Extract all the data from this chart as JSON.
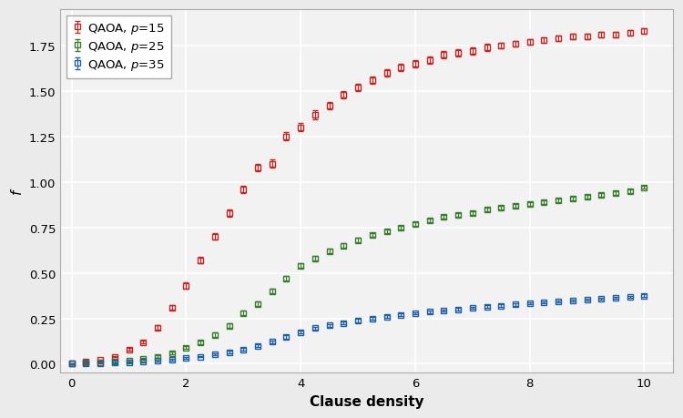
{
  "title": "",
  "xlabel": "Clause density",
  "ylabel": "f",
  "xlim": [
    -0.2,
    10.5
  ],
  "ylim": [
    -0.05,
    1.95
  ],
  "yticks": [
    0.0,
    0.25,
    0.5,
    0.75,
    1.0,
    1.25,
    1.5,
    1.75
  ],
  "xticks": [
    0,
    2,
    4,
    6,
    8,
    10
  ],
  "fig_bg": "#ebebeb",
  "ax_bg": "#f2f2f2",
  "grid_color": "#ffffff",
  "series": [
    {
      "label": "QAOA, $p$=15",
      "color": "#cc2222",
      "x": [
        0.0,
        0.25,
        0.5,
        0.75,
        1.0,
        1.25,
        1.5,
        1.75,
        2.0,
        2.25,
        2.5,
        2.75,
        3.0,
        3.25,
        3.5,
        3.75,
        4.0,
        4.25,
        4.5,
        4.75,
        5.0,
        5.25,
        5.5,
        5.75,
        6.0,
        6.25,
        6.5,
        6.75,
        7.0,
        7.25,
        7.5,
        7.75,
        8.0,
        8.25,
        8.5,
        8.75,
        9.0,
        9.25,
        9.5,
        9.75,
        10.0
      ],
      "y": [
        0.0,
        0.01,
        0.02,
        0.04,
        0.08,
        0.12,
        0.2,
        0.31,
        0.43,
        0.57,
        0.7,
        0.83,
        0.96,
        1.08,
        1.1,
        1.25,
        1.3,
        1.37,
        1.42,
        1.48,
        1.52,
        1.56,
        1.6,
        1.63,
        1.65,
        1.67,
        1.7,
        1.71,
        1.72,
        1.74,
        1.75,
        1.76,
        1.77,
        1.78,
        1.79,
        1.8,
        1.8,
        1.81,
        1.81,
        1.82,
        1.83
      ],
      "yerr": [
        0.001,
        0.002,
        0.003,
        0.005,
        0.007,
        0.009,
        0.012,
        0.014,
        0.016,
        0.017,
        0.018,
        0.019,
        0.02,
        0.021,
        0.022,
        0.023,
        0.023,
        0.023,
        0.022,
        0.022,
        0.022,
        0.021,
        0.021,
        0.02,
        0.02,
        0.019,
        0.019,
        0.018,
        0.018,
        0.018,
        0.017,
        0.017,
        0.016,
        0.016,
        0.016,
        0.015,
        0.015,
        0.015,
        0.015,
        0.015,
        0.014
      ]
    },
    {
      "label": "QAOA, $p$=25",
      "color": "#3a7d2c",
      "x": [
        0.0,
        0.25,
        0.5,
        0.75,
        1.0,
        1.25,
        1.5,
        1.75,
        2.0,
        2.25,
        2.5,
        2.75,
        3.0,
        3.25,
        3.5,
        3.75,
        4.0,
        4.25,
        4.5,
        4.75,
        5.0,
        5.25,
        5.5,
        5.75,
        6.0,
        6.25,
        6.5,
        6.75,
        7.0,
        7.25,
        7.5,
        7.75,
        8.0,
        8.25,
        8.5,
        8.75,
        9.0,
        9.25,
        9.5,
        9.75,
        10.0
      ],
      "y": [
        0.0,
        0.005,
        0.008,
        0.012,
        0.018,
        0.025,
        0.04,
        0.06,
        0.09,
        0.12,
        0.16,
        0.21,
        0.28,
        0.33,
        0.4,
        0.47,
        0.54,
        0.58,
        0.62,
        0.65,
        0.68,
        0.71,
        0.73,
        0.75,
        0.77,
        0.79,
        0.81,
        0.82,
        0.83,
        0.85,
        0.86,
        0.87,
        0.88,
        0.89,
        0.9,
        0.91,
        0.92,
        0.93,
        0.94,
        0.95,
        0.97
      ],
      "yerr": [
        0.001,
        0.002,
        0.002,
        0.003,
        0.004,
        0.005,
        0.006,
        0.008,
        0.009,
        0.01,
        0.011,
        0.012,
        0.013,
        0.013,
        0.013,
        0.013,
        0.013,
        0.013,
        0.012,
        0.012,
        0.012,
        0.011,
        0.011,
        0.011,
        0.011,
        0.01,
        0.01,
        0.01,
        0.01,
        0.01,
        0.01,
        0.009,
        0.009,
        0.009,
        0.009,
        0.009,
        0.009,
        0.009,
        0.009,
        0.009,
        0.008
      ]
    },
    {
      "label": "QAOA, $p$=35",
      "color": "#1f5fa6",
      "x": [
        0.0,
        0.25,
        0.5,
        0.75,
        1.0,
        1.25,
        1.5,
        1.75,
        2.0,
        2.25,
        2.5,
        2.75,
        3.0,
        3.25,
        3.5,
        3.75,
        4.0,
        4.25,
        4.5,
        4.75,
        5.0,
        5.25,
        5.5,
        5.75,
        6.0,
        6.25,
        6.5,
        6.75,
        7.0,
        7.25,
        7.5,
        7.75,
        8.0,
        8.25,
        8.5,
        8.75,
        9.0,
        9.25,
        9.5,
        9.75,
        10.0
      ],
      "y": [
        0.0,
        0.002,
        0.004,
        0.006,
        0.008,
        0.011,
        0.016,
        0.022,
        0.03,
        0.04,
        0.052,
        0.065,
        0.08,
        0.1,
        0.122,
        0.148,
        0.175,
        0.196,
        0.212,
        0.225,
        0.238,
        0.25,
        0.26,
        0.27,
        0.278,
        0.286,
        0.293,
        0.3,
        0.308,
        0.315,
        0.32,
        0.326,
        0.332,
        0.337,
        0.342,
        0.348,
        0.352,
        0.358,
        0.362,
        0.368,
        0.375
      ],
      "yerr": [
        0.001,
        0.001,
        0.002,
        0.002,
        0.003,
        0.003,
        0.004,
        0.004,
        0.005,
        0.005,
        0.006,
        0.006,
        0.007,
        0.007,
        0.007,
        0.008,
        0.008,
        0.008,
        0.008,
        0.008,
        0.008,
        0.007,
        0.007,
        0.007,
        0.007,
        0.007,
        0.007,
        0.007,
        0.007,
        0.006,
        0.006,
        0.006,
        0.006,
        0.006,
        0.006,
        0.006,
        0.006,
        0.006,
        0.006,
        0.006,
        0.006
      ]
    }
  ],
  "marker": "s",
  "markersize": 5,
  "capsize": 2,
  "elinewidth": 0.8,
  "markeredgewidth": 1.0
}
